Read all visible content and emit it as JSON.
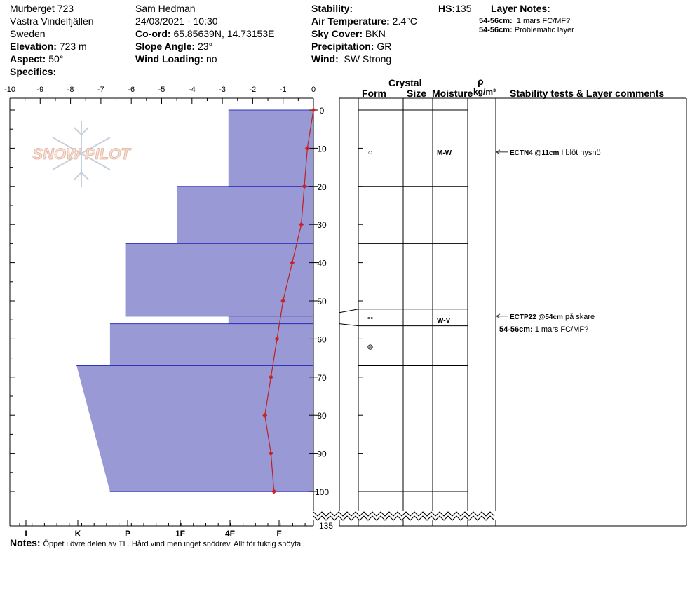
{
  "header": {
    "location": "Murberget 723",
    "region": "Västra Vindelfjällen",
    "country": "Sweden",
    "elevation_label": "Elevation:",
    "elevation_value": "723 m",
    "aspect_label": "Aspect:",
    "aspect_value": "50°",
    "specifics_label": "Specifics:",
    "observer": "Sam Hedman",
    "datetime": "24/03/2021 - 10:30",
    "coord_label": "Co-ord:",
    "coord_value": "65.85639N, 14.73153E",
    "slope_label": "Slope Angle:",
    "slope_value": "23°",
    "wind_loading_label": "Wind Loading:",
    "wind_loading_value": "no",
    "stability_label": "Stability:",
    "stability_value": "",
    "air_temp_label": "Air Temperature:",
    "air_temp_value": "2.4°C",
    "sky_label": "Sky Cover:",
    "sky_value": "BKN",
    "precip_label": "Precipitation:",
    "precip_value": "GR",
    "wind_label": "Wind:",
    "wind_value": "SW Strong",
    "hs_label": "HS:",
    "hs_value": "135",
    "layer_notes_label": "Layer Notes:",
    "layer_notes": [
      {
        "depth": "54-56cm:",
        "text": "1 mars FC/MF?"
      },
      {
        "depth": "54-56cm:",
        "text": "Problematic layer"
      }
    ]
  },
  "logo_text": "SNOW PILOT",
  "columns": {
    "crystal": "Crystal",
    "form": "Form",
    "size": "Size",
    "moisture": "Moisture",
    "rho": "ρ",
    "density_unit": "kg/m³",
    "stability": "Stability tests & Layer comments"
  },
  "notes_label": "Notes:",
  "notes_text": "Öppet i övre delen av TL. Hård vind men inget snödrev. Allt för fuktig snöyta.",
  "colors": {
    "hardness_fill": "#9999d6",
    "hardness_stroke": "#3333bb",
    "temp_line": "#bb2222",
    "temp_marker": "#cc2222"
  },
  "chart_data": {
    "type": "snow-profile",
    "temperature_axis": {
      "range": [
        -10,
        0
      ],
      "ticks": [
        -10,
        -9,
        -8,
        -7,
        -6,
        -5,
        -4,
        -3,
        -2,
        -1,
        0
      ]
    },
    "depth_axis": {
      "range": [
        0,
        100
      ],
      "ticks": [
        0,
        10,
        20,
        30,
        40,
        50,
        60,
        70,
        80,
        90,
        100
      ],
      "total_label": "135"
    },
    "hardness_axis": {
      "ticks": [
        "I",
        "K",
        "P",
        "1F",
        "4F",
        "F"
      ]
    },
    "hardness_profile": [
      {
        "top": 0,
        "bottom": 20,
        "hardness_value": -2.8
      },
      {
        "top": 20,
        "bottom": 35,
        "hardness_value": -4.5
      },
      {
        "top": 35,
        "bottom": 54,
        "hardness_value": -6.2
      },
      {
        "top": 54,
        "bottom": 56,
        "hardness_value": -2.8
      },
      {
        "top": 56,
        "bottom": 67,
        "hardness_value": -6.7
      },
      {
        "top": 67,
        "bottom": 100,
        "hardness_value_top": -7.8,
        "hardness_value_bottom": -6.7
      }
    ],
    "temperature_profile": [
      {
        "depth": 0,
        "temp": 0.0
      },
      {
        "depth": 10,
        "temp": -0.2
      },
      {
        "depth": 20,
        "temp": -0.3
      },
      {
        "depth": 30,
        "temp": -0.4
      },
      {
        "depth": 40,
        "temp": -0.7
      },
      {
        "depth": 50,
        "temp": -1.0
      },
      {
        "depth": 60,
        "temp": -1.2
      },
      {
        "depth": 70,
        "temp": -1.4
      },
      {
        "depth": 80,
        "temp": -1.6
      },
      {
        "depth": 90,
        "temp": -1.4
      },
      {
        "depth": 100,
        "temp": -1.3
      }
    ],
    "layer_boundaries": [
      0,
      20,
      35,
      54,
      56,
      67,
      100
    ],
    "layers": [
      {
        "depth": 11,
        "form_symbol": "○",
        "moisture": "M-W"
      },
      {
        "depth": 55,
        "form_symbol": "°°",
        "moisture": "W-V"
      },
      {
        "depth": 62,
        "form_symbol": "⊖",
        "moisture": ""
      }
    ],
    "stability_tests": [
      {
        "depth": 11,
        "code": "ECTN4 @11cm",
        "comment": "I blöt nysnö"
      },
      {
        "depth": 54,
        "code": "ECTP22 @54cm",
        "comment": "på skare"
      }
    ],
    "layer_comments": [
      {
        "depth": 54,
        "label": "54-56cm:",
        "text": "1 mars FC/MF?"
      }
    ]
  }
}
